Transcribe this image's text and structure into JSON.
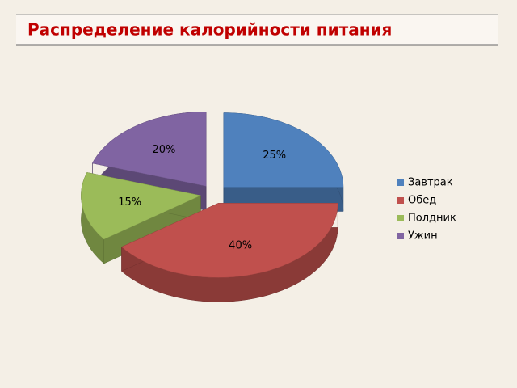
{
  "chart_data": {
    "type": "pie3d",
    "title": "Распределение калорийности питания",
    "categories": [
      "Завтрак",
      "Обед",
      "Полдник",
      "Ужин"
    ],
    "values": [
      25,
      40,
      15,
      20
    ],
    "value_labels": [
      "25%",
      "40%",
      "15%",
      "20%"
    ],
    "colors": [
      "#4f81bd",
      "#c0504d",
      "#9bbb59",
      "#8064a2"
    ],
    "legend": "right"
  }
}
